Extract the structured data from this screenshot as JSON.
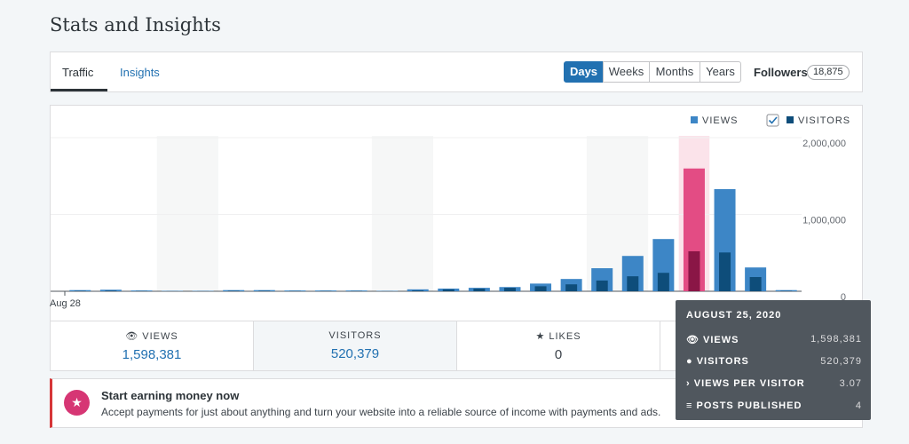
{
  "header": {
    "title": "Stats and Insights"
  },
  "nav": {
    "tabs": [
      "Traffic",
      "Insights"
    ],
    "periods": [
      "Days",
      "Weeks",
      "Months",
      "Years"
    ],
    "followers_label": "Followers",
    "followers_count": "18,875"
  },
  "chart_data": {
    "type": "bar",
    "categories": [
      "Aug 28",
      null,
      null,
      null,
      null,
      null,
      null,
      null,
      null,
      null,
      null,
      null,
      null,
      null,
      null,
      null,
      null,
      null,
      null,
      null,
      null,
      null,
      null,
      null
    ],
    "series": [
      {
        "name": "VIEWS",
        "color": "#3d86c6",
        "values": [
          15000,
          20000,
          10000,
          5000,
          5000,
          15000,
          15000,
          10000,
          10000,
          10000,
          5000,
          25000,
          35000,
          45000,
          55000,
          100000,
          160000,
          300000,
          460000,
          680000,
          1598381,
          1330000,
          310000,
          15000
        ]
      },
      {
        "name": "VISITORS",
        "color": "#0e4d7a",
        "values": [
          5000,
          8000,
          4000,
          2000,
          2000,
          6000,
          6000,
          4000,
          4000,
          4000,
          2000,
          10000,
          25000,
          35000,
          45000,
          65000,
          90000,
          140000,
          195000,
          240000,
          520379,
          505000,
          185000,
          5000
        ]
      }
    ],
    "highlight_color": "#e34c84",
    "highlight_dark": "#8a1646",
    "ylim": [
      0,
      2000000
    ],
    "yticks": [
      0,
      {
        "value": 1000000,
        "label": "1,000,000"
      },
      {
        "value": 2000000,
        "label": "2,000,000"
      }
    ],
    "grid": true
  },
  "summary": [
    {
      "label": "VIEWS",
      "value": "1,598,381"
    },
    {
      "label": "VISITORS",
      "value": "520,379"
    },
    {
      "label": "LIKES",
      "value": "0"
    }
  ],
  "tooltip": {
    "date": "AUGUST 25, 2020",
    "rows": [
      {
        "label": "VIEWS",
        "value": "1,598,381"
      },
      {
        "label": "VISITORS",
        "value": "520,379"
      },
      {
        "label": "VIEWS PER VISITOR",
        "value": "3.07"
      },
      {
        "label": "POSTS PUBLISHED",
        "value": "4"
      }
    ]
  },
  "banner": {
    "title": "Start earning money now",
    "text": "Accept payments for just about anything and turn your website into a reliable source of income with payments and ads."
  }
}
